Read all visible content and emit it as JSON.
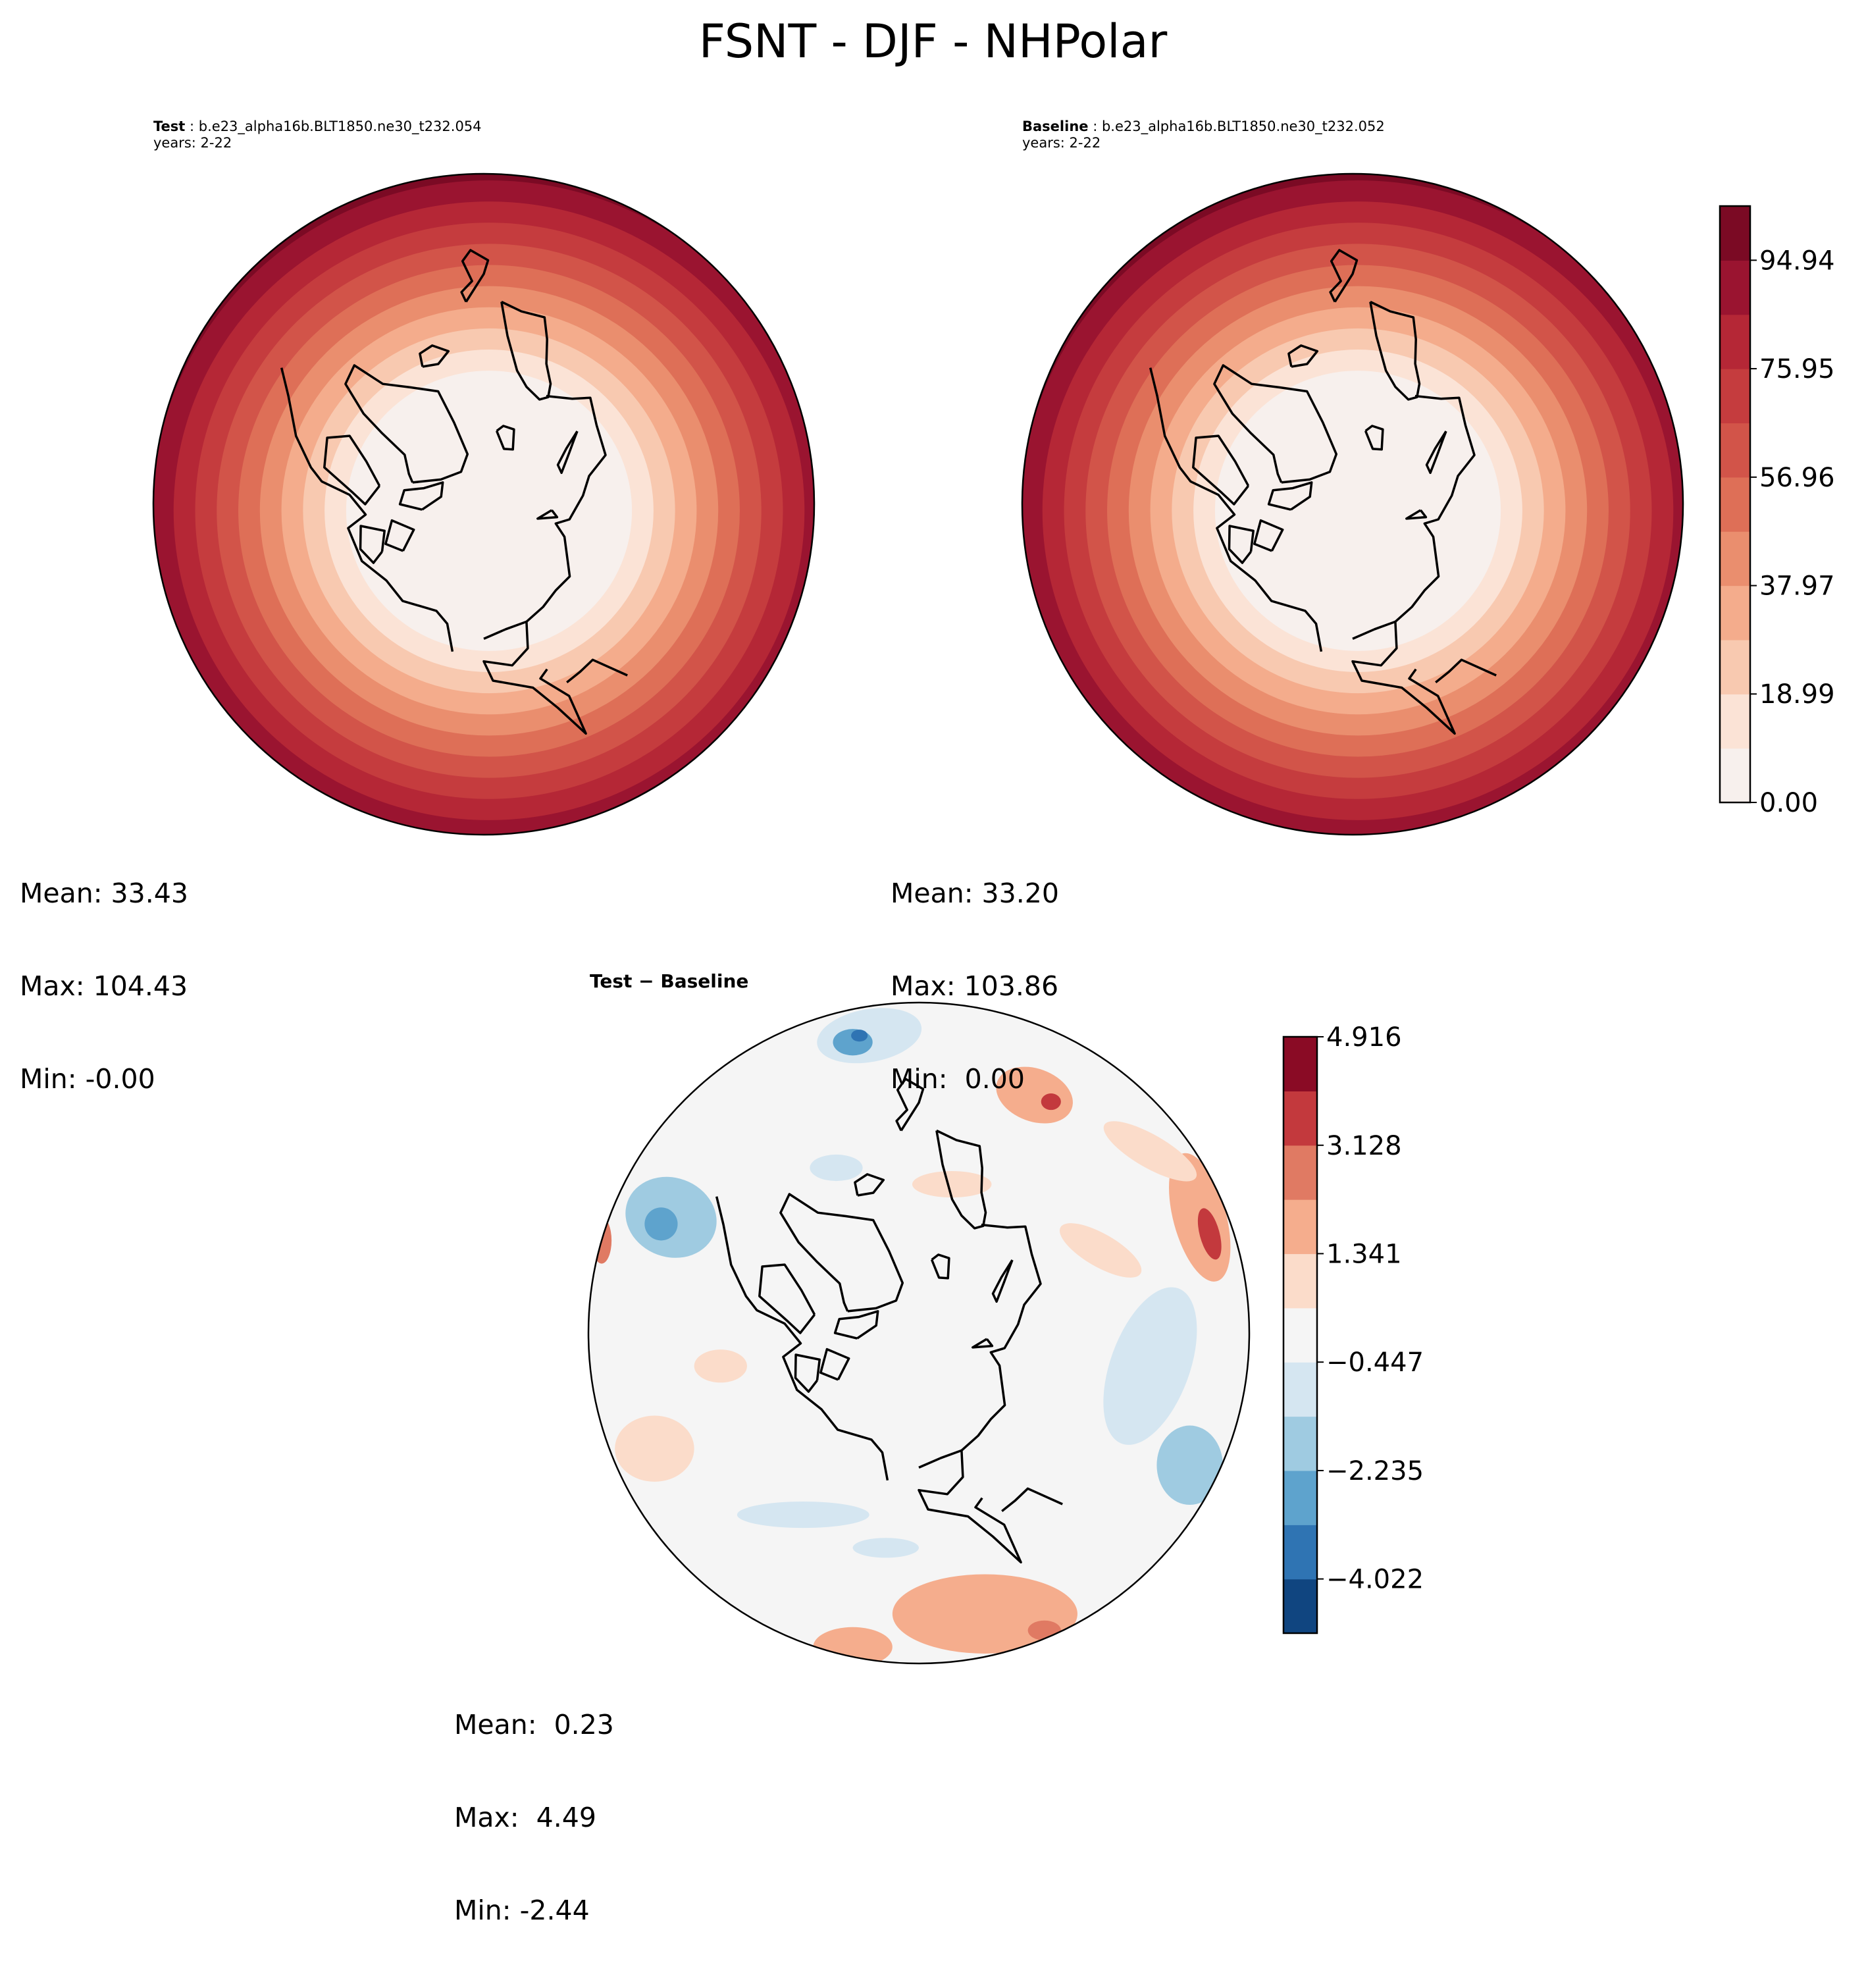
{
  "chart_data": {
    "type": "contour",
    "title": "FSNT - DJF - NHPolar",
    "panels": [
      {
        "name": "test",
        "label": "Test",
        "case": "b.e23_alpha16b.BLT1850.ne30_t232.054",
        "years": "years: 2-22",
        "stats": {
          "mean": "Mean: 33.43",
          "max": "Max: 104.43",
          "min": "Min: -0.00"
        },
        "projection": "North Polar Stereographic"
      },
      {
        "name": "baseline",
        "label": "Baseline",
        "case": "b.e23_alpha16b.BLT1850.ne30_t232.052",
        "years": "years: 2-22",
        "stats": {
          "mean": "Mean: 33.20",
          "max": "Max: 103.86",
          "min": "Min:  0.00"
        },
        "projection": "North Polar Stereographic"
      },
      {
        "name": "difference",
        "label": "Test − Baseline",
        "stats": {
          "mean": "Mean:  0.23",
          "max": "Max:  4.49",
          "min": "Min: -2.44"
        },
        "projection": "North Polar Stereographic"
      }
    ],
    "colorbars": [
      {
        "for": "test-baseline",
        "range": [
          0,
          104.43
        ],
        "levels": 11,
        "tick_values": [
          0.0,
          18.99,
          37.97,
          56.96,
          75.95,
          94.94
        ],
        "ticks": [
          "0.00",
          "18.99",
          "37.97",
          "56.96",
          "75.95",
          "94.94"
        ],
        "colors": [
          "#f7f0ed",
          "#fbe3d6",
          "#f8c9b0",
          "#f4ac8c",
          "#ea8e6e",
          "#de6f57",
          "#d25449",
          "#c53c3e",
          "#b52736",
          "#9a1430",
          "#7b0a24"
        ]
      },
      {
        "for": "difference",
        "range": [
          -4.916,
          4.916
        ],
        "levels": 11,
        "tick_values": [
          -4.022,
          -2.235,
          -0.447,
          1.341,
          3.128,
          4.916
        ],
        "ticks": [
          "−4.022",
          "−2.235",
          "−0.447",
          "1.341",
          "3.128",
          "4.916"
        ],
        "colors": [
          "#104580",
          "#2f74b3",
          "#5ea3cd",
          "#9fcbe1",
          "#d5e6f1",
          "#f5f5f5",
          "#fbdcca",
          "#f5ad8d",
          "#e07a63",
          "#c3393d",
          "#8a0b25"
        ]
      }
    ]
  },
  "colors": {
    "coast": "#000000",
    "frame": "#000000"
  }
}
